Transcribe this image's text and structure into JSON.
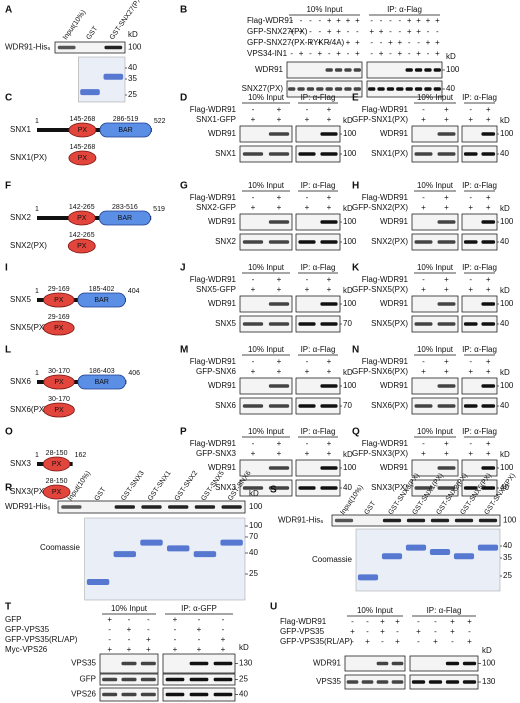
{
  "panels": [
    {
      "label": "A",
      "kind": "pulldown",
      "lanes": [
        "Input(10%)",
        "GST",
        "GST-SNX27(PX)"
      ],
      "blot": "WDR91-His₆",
      "blot_marker": 100,
      "kd": "kD",
      "stain_markers": [
        40,
        35,
        25
      ]
    },
    {
      "label": "B",
      "kind": "ip",
      "groups": [
        "10% Input",
        "IP: α-Flag"
      ],
      "conditions": [
        {
          "name": "Flag-WDR91",
          "signs": [
            "-",
            "-",
            "-",
            "-",
            "+",
            "+",
            "+",
            "+",
            "-",
            "-",
            "-",
            "-",
            "+",
            "+",
            "+",
            "+"
          ]
        },
        {
          "name": "GFP-SNX27(PX)",
          "signs": [
            "+",
            "+",
            "-",
            "-",
            "+",
            "+",
            "-",
            "-",
            "+",
            "+",
            "-",
            "-",
            "+",
            "+",
            "-",
            "-"
          ]
        },
        {
          "name": "GFP-SNX27(PX-RYKR/4A)",
          "signs": [
            "-",
            "-",
            "+",
            "+",
            "-",
            "-",
            "+",
            "+",
            "-",
            "-",
            "+",
            "+",
            "-",
            "-",
            "+",
            "+"
          ]
        },
        {
          "name": "VPS34-IN1",
          "signs": [
            "-",
            "+",
            "-",
            "+",
            "-",
            "+",
            "-",
            "+",
            "-",
            "+",
            "-",
            "+",
            "-",
            "+",
            "-",
            "+"
          ]
        }
      ],
      "kd": "kD",
      "blots": [
        {
          "name": "WDR91",
          "marker": 100
        },
        {
          "name": "SNX27(PX)",
          "marker": 40
        }
      ]
    },
    {
      "label": "C",
      "kind": "domain",
      "protein": "SNX1",
      "start": 1,
      "end": 522,
      "domains": [
        {
          "name": "PX",
          "range": "145-268"
        },
        {
          "name": "BAR",
          "range": "286-519"
        }
      ],
      "construct": {
        "name": "SNX1(PX)",
        "domain": "PX",
        "range": "145-268"
      }
    },
    {
      "label": "D",
      "kind": "ip",
      "groups": [
        "10% Input",
        "IP: α-Flag"
      ],
      "conditions": [
        {
          "name": "Flag-WDR91",
          "signs": [
            "-",
            "+",
            "-",
            "+"
          ]
        },
        {
          "name": "SNX1-GFP",
          "signs": [
            "+",
            "+",
            "+",
            "+"
          ]
        }
      ],
      "kd": "kD",
      "blots": [
        {
          "name": "WDR91",
          "marker": 100
        },
        {
          "name": "SNX1",
          "marker": 100
        }
      ]
    },
    {
      "label": "E",
      "kind": "ip",
      "groups": [
        "10% Input",
        "IP: α-Flag"
      ],
      "conditions": [
        {
          "name": "Flag-WDR91",
          "signs": [
            "-",
            "+",
            "-",
            "+"
          ]
        },
        {
          "name": "GFP-SNX1(PX)",
          "signs": [
            "+",
            "+",
            "+",
            "+"
          ]
        }
      ],
      "kd": "kD",
      "blots": [
        {
          "name": "WDR91",
          "marker": 100
        },
        {
          "name": "SNX1(PX)",
          "marker": 40
        }
      ]
    },
    {
      "label": "F",
      "kind": "domain",
      "protein": "SNX2",
      "start": 1,
      "end": 519,
      "domains": [
        {
          "name": "PX",
          "range": "142-265"
        },
        {
          "name": "BAR",
          "range": "283-516"
        }
      ],
      "construct": {
        "name": "SNX2(PX)",
        "domain": "PX",
        "range": "142-265"
      }
    },
    {
      "label": "G",
      "kind": "ip",
      "groups": [
        "10% Input",
        "IP: α-Flag"
      ],
      "conditions": [
        {
          "name": "Flag-WDR91",
          "signs": [
            "-",
            "+",
            "-",
            "+"
          ]
        },
        {
          "name": "SNX2-GFP",
          "signs": [
            "+",
            "+",
            "+",
            "+"
          ]
        }
      ],
      "kd": "kD",
      "blots": [
        {
          "name": "WDR91",
          "marker": 100
        },
        {
          "name": "SNX2",
          "marker": 100
        }
      ]
    },
    {
      "label": "H",
      "kind": "ip",
      "groups": [
        "10% Input",
        "IP: α-Flag"
      ],
      "conditions": [
        {
          "name": "Flag-WDR91",
          "signs": [
            "-",
            "+",
            "-",
            "+"
          ]
        },
        {
          "name": "GFP-SNX2(PX)",
          "signs": [
            "+",
            "+",
            "+",
            "+"
          ]
        }
      ],
      "kd": "kD",
      "blots": [
        {
          "name": "WDR91",
          "marker": 100
        },
        {
          "name": "SNX2(PX)",
          "marker": 40
        }
      ]
    },
    {
      "label": "I",
      "kind": "domain",
      "protein": "SNX5",
      "start": 1,
      "end": 404,
      "domains": [
        {
          "name": "PX",
          "range": "29-169"
        },
        {
          "name": "BAR",
          "range": "185-402"
        }
      ],
      "construct": {
        "name": "SNX5(PX)",
        "domain": "PX",
        "range": "29-169"
      }
    },
    {
      "label": "J",
      "kind": "ip",
      "groups": [
        "10% Input",
        "IP: α-Flag"
      ],
      "conditions": [
        {
          "name": "Flag-WDR91",
          "signs": [
            "-",
            "+",
            "-",
            "+"
          ]
        },
        {
          "name": "SNX5-GFP",
          "signs": [
            "+",
            "+",
            "+",
            "+"
          ]
        }
      ],
      "kd": "kD",
      "blots": [
        {
          "name": "WDR91",
          "marker": 100
        },
        {
          "name": "SNX5",
          "marker": 70
        }
      ]
    },
    {
      "label": "K",
      "kind": "ip",
      "groups": [
        "10% Input",
        "IP: α-Flag"
      ],
      "conditions": [
        {
          "name": "Flag-WDR91",
          "signs": [
            "-",
            "+",
            "-",
            "+"
          ]
        },
        {
          "name": "GFP-SNX5(PX)",
          "signs": [
            "+",
            "+",
            "+",
            "+"
          ]
        }
      ],
      "kd": "kD",
      "blots": [
        {
          "name": "WDR91",
          "marker": 100
        },
        {
          "name": "SNX5(PX)",
          "marker": 40
        }
      ]
    },
    {
      "label": "L",
      "kind": "domain",
      "protein": "SNX6",
      "start": 1,
      "end": 406,
      "domains": [
        {
          "name": "PX",
          "range": "30-170"
        },
        {
          "name": "BAR",
          "range": "186-403"
        }
      ],
      "construct": {
        "name": "SNX6(PX)",
        "domain": "PX",
        "range": "30-170"
      }
    },
    {
      "label": "M",
      "kind": "ip",
      "groups": [
        "10% Input",
        "IP: α-Flag"
      ],
      "conditions": [
        {
          "name": "Flag-WDR91",
          "signs": [
            "-",
            "+",
            "-",
            "+"
          ]
        },
        {
          "name": "GFP-SNX6",
          "signs": [
            "+",
            "+",
            "+",
            "+"
          ]
        }
      ],
      "kd": "kD",
      "blots": [
        {
          "name": "WDR91",
          "marker": 100
        },
        {
          "name": "SNX6",
          "marker": 70
        }
      ]
    },
    {
      "label": "N",
      "kind": "ip",
      "groups": [
        "10% Input",
        "IP: α-Flag"
      ],
      "conditions": [
        {
          "name": "Flag-WDR91",
          "signs": [
            "-",
            "+",
            "-",
            "+"
          ]
        },
        {
          "name": "GFP-SNX6(PX)",
          "signs": [
            "+",
            "+",
            "+",
            "+"
          ]
        }
      ],
      "kd": "kD",
      "blots": [
        {
          "name": "WDR91",
          "marker": 100
        },
        {
          "name": "SNX6(PX)",
          "marker": 40
        }
      ]
    },
    {
      "label": "O",
      "kind": "domain",
      "protein": "SNX3",
      "start": 1,
      "end": 162,
      "domains": [
        {
          "name": "PX",
          "range": "28-150"
        }
      ],
      "construct": {
        "name": "SNX3(PX)",
        "domain": "PX",
        "range": "28-150"
      }
    },
    {
      "label": "P",
      "kind": "ip",
      "groups": [
        "10% Input",
        "IP: α-Flag"
      ],
      "conditions": [
        {
          "name": "Flag-WDR91",
          "signs": [
            "-",
            "+",
            "-",
            "+"
          ]
        },
        {
          "name": "GFP-SNX3",
          "signs": [
            "+",
            "+",
            "+",
            "+"
          ]
        }
      ],
      "kd": "kD",
      "blots": [
        {
          "name": "WDR91",
          "marker": 100
        },
        {
          "name": "SNX3",
          "marker": 40
        }
      ]
    },
    {
      "label": "Q",
      "kind": "ip",
      "groups": [
        "10% Input",
        "IP: α-Flag"
      ],
      "conditions": [
        {
          "name": "Flag-WDR91",
          "signs": [
            "-",
            "+",
            "-",
            "+"
          ]
        },
        {
          "name": "GFP-SNX3(PX)",
          "signs": [
            "+",
            "+",
            "+",
            "+"
          ]
        }
      ],
      "kd": "kD",
      "blots": [
        {
          "name": "WDR91",
          "marker": 100
        },
        {
          "name": "SNX3(PX)",
          "marker": 40
        }
      ]
    },
    {
      "label": "R",
      "kind": "pulldown",
      "lanes": [
        "Input(10%)",
        "GST",
        "GST-SNX3",
        "GST-SNX1",
        "GST-SNX2",
        "GST-SNX5",
        "GST-SNX6"
      ],
      "blot": "WDR91-His₆",
      "blot_marker": 100,
      "kd": "kD",
      "stain": "Coomassie",
      "stain_markers": [
        100,
        70,
        40,
        25
      ]
    },
    {
      "label": "S",
      "kind": "pulldown",
      "lanes": [
        "Input(10%)",
        "GST",
        "GST-SNX3(PX)",
        "GST-SNX1(PX)",
        "GST-SNX2(PX)",
        "GST-SNX5(PX)",
        "GST-SNX6(PX)"
      ],
      "blot": "WDR91-His₆",
      "blot_marker": 100,
      "stain": "Coomassie",
      "stain_markers": [
        40,
        35,
        25
      ]
    },
    {
      "label": "T",
      "kind": "ip",
      "groups": [
        "10% Input",
        "IP: α-GFP"
      ],
      "conditions": [
        {
          "name": "GFP",
          "signs": [
            "+",
            "-",
            "-",
            "+",
            "-",
            "-"
          ]
        },
        {
          "name": "GFP-VPS35",
          "signs": [
            "-",
            "+",
            "-",
            "-",
            "+",
            "-"
          ]
        },
        {
          "name": "GFP-VPS35(RL/AP)",
          "signs": [
            "-",
            "-",
            "+",
            "-",
            "-",
            "+"
          ]
        },
        {
          "name": "Myc-VPS26",
          "signs": [
            "+",
            "+",
            "+",
            "+",
            "+",
            "+"
          ]
        }
      ],
      "kd": "kD",
      "blots": [
        {
          "name": "VPS35",
          "marker": 130
        },
        {
          "name": "GFP",
          "marker": 25
        },
        {
          "name": "VPS26",
          "marker": 40
        }
      ]
    },
    {
      "label": "U",
      "kind": "ip",
      "groups": [
        "10% Input",
        "IP: α-Flag"
      ],
      "conditions": [
        {
          "name": "Flag-WDR91",
          "signs": [
            "-",
            "-",
            "+",
            "+",
            "-",
            "-",
            "+",
            "+"
          ]
        },
        {
          "name": "GFP-VPS35",
          "signs": [
            "+",
            "-",
            "+",
            "-",
            "+",
            "-",
            "+",
            "-"
          ]
        },
        {
          "name": "GFP-VPS35(RL/AP)",
          "signs": [
            "-",
            "+",
            "-",
            "+",
            "-",
            "+",
            "-",
            "+"
          ]
        }
      ],
      "kd": "kD",
      "blots": [
        {
          "name": "WDR91",
          "marker": 100
        },
        {
          "name": "VPS35",
          "marker": 130
        }
      ]
    }
  ]
}
